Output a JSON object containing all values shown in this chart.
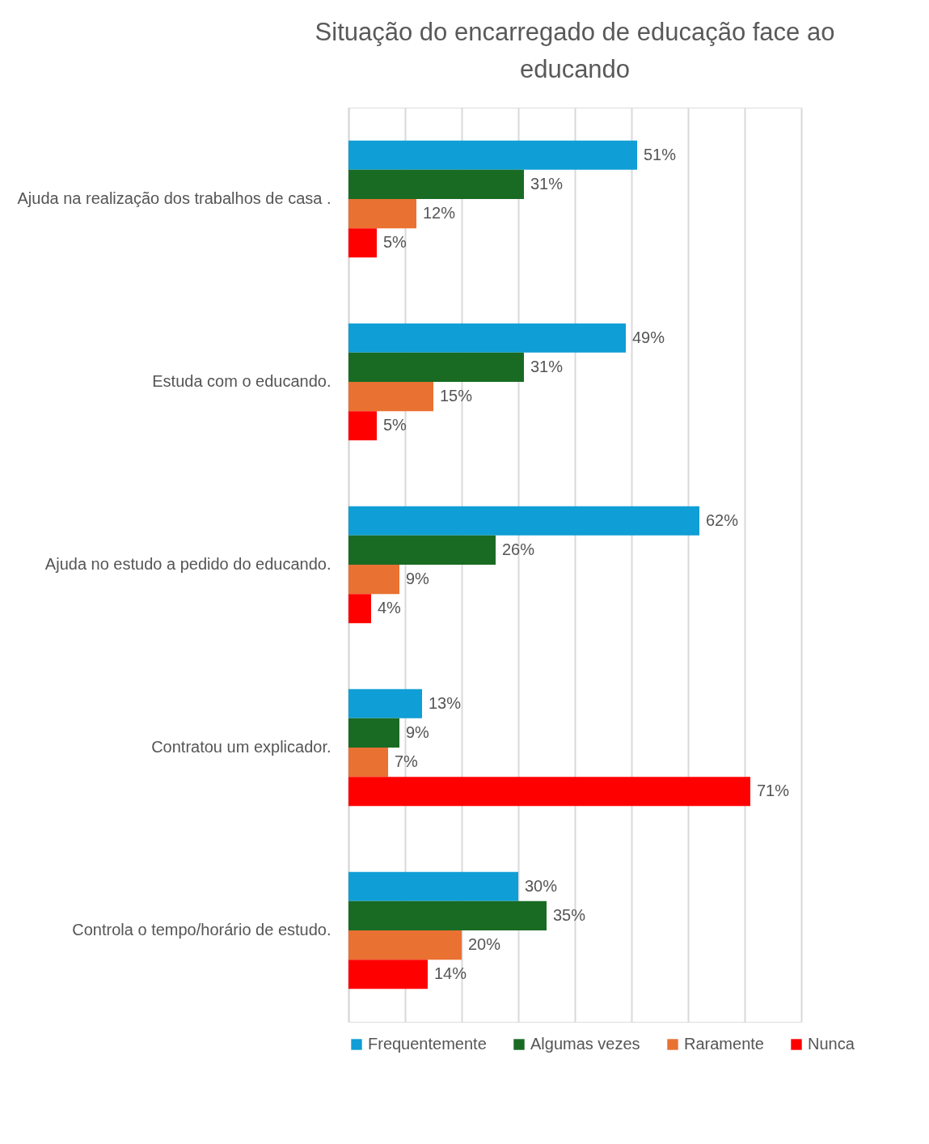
{
  "chart_data": {
    "type": "bar",
    "orientation": "horizontal",
    "title": "Situação do encarregado de educação face ao educando",
    "categories": [
      "Ajuda na realização dos trabalhos de casa .",
      "Estuda com o educando.",
      "Ajuda no estudo a pedido do educando.",
      "Contratou um explicador.",
      "Controla o tempo/horário de estudo."
    ],
    "series": [
      {
        "name": "Frequentemente",
        "color": "#0f9ed5",
        "values": [
          51,
          49,
          62,
          13,
          30
        ],
        "value_labels": [
          "51%",
          "49%",
          "62%",
          "13%",
          "30%"
        ]
      },
      {
        "name": "Algumas vezes",
        "color": "#196b24",
        "values": [
          31,
          31,
          26,
          9,
          35
        ],
        "value_labels": [
          "31%",
          "31%",
          "26%",
          "9%",
          "35%"
        ]
      },
      {
        "name": "Raramente",
        "color": "#e97132",
        "values": [
          12,
          15,
          9,
          7,
          20
        ],
        "value_labels": [
          "12%",
          "15%",
          "9%",
          "7%",
          "20%"
        ]
      },
      {
        "name": "Nunca",
        "color": "#ff0000",
        "values": [
          5,
          5,
          4,
          71,
          14
        ],
        "value_labels": [
          "5%",
          "5%",
          "4%",
          "71%",
          "14%"
        ]
      }
    ],
    "xlim": [
      0,
      80
    ],
    "xticks": [
      {
        "value": 0,
        "label": null
      },
      {
        "value": 10,
        "label": null
      },
      {
        "value": 20,
        "label": null
      },
      {
        "value": 30,
        "label": null
      },
      {
        "value": 40,
        "label": null
      },
      {
        "value": 50,
        "label": null
      },
      {
        "value": 60,
        "label": null
      },
      {
        "value": 70,
        "label": null
      },
      {
        "value": 80,
        "label": null
      }
    ],
    "grid": "x",
    "legend": "bottom",
    "tick_labels": "y"
  }
}
